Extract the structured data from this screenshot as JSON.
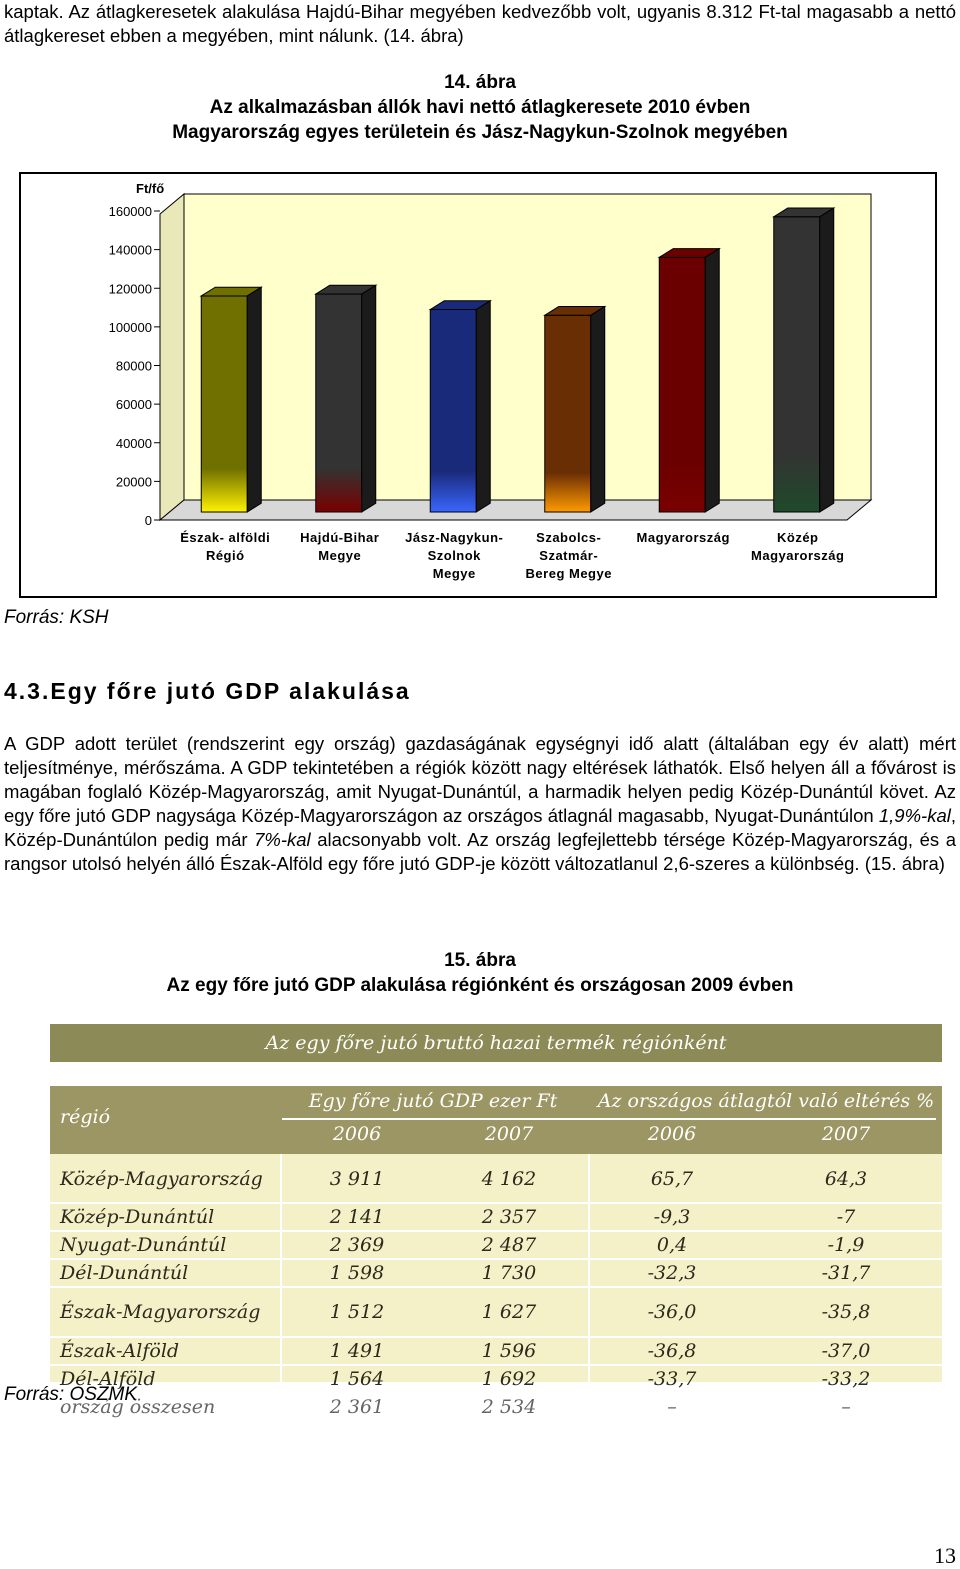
{
  "intro_paragraph": "kaptak. Az átlagkeresetek alakulása Hajdú-Bihar megyében kedvezőbb volt, ugyanis 8.312 Ft-tal magasabb a nettó átlagkereset ebben a megyében, mint nálunk. (14. ábra)",
  "figure14": {
    "number": "14. ábra",
    "title_line1": "Az alkalmazásban állók havi nettó átlagkeresete 2010 évben",
    "title_line2": "Magyarország egyes területein és Jász-Nagykun-Szolnok megyében",
    "source": "Forrás: KSH"
  },
  "chart_data": {
    "type": "bar",
    "ylabel": "Ft/fő",
    "ylim": [
      0,
      160000
    ],
    "yticks": [
      0,
      20000,
      40000,
      60000,
      80000,
      100000,
      120000,
      140000,
      160000
    ],
    "categories": [
      [
        "Észak- alföldi",
        "Régió"
      ],
      [
        "Hajdú-Bihar",
        "Megye"
      ],
      [
        "Jász-Nagykun-",
        "Szolnok",
        "Megye"
      ],
      [
        "Szabolcs-",
        "Szatmár-",
        "Bereg Megye"
      ],
      [
        "Magyarország"
      ],
      [
        "Közép",
        "Magyarország"
      ]
    ],
    "values": [
      116000,
      117000,
      109000,
      106000,
      136000,
      157000
    ],
    "bar_colors": [
      [
        "#707000",
        "#fff200"
      ],
      [
        "#333333",
        "#7a0000"
      ],
      [
        "#1a2a7a",
        "#3a66ff"
      ],
      [
        "#6a2e05",
        "#ff9a00"
      ],
      [
        "#6b0000",
        "#7a0000"
      ],
      [
        "#333333",
        "#1f4a2a"
      ]
    ],
    "wall_color": "#ffffcc",
    "grid": false
  },
  "section_heading": "4.3.Egy főre jutó GDP alakulása",
  "gdp_paragraph": {
    "p1": "A GDP adott terület (rendszerint egy ország) gazdaságának egységnyi idő alatt (általában egy év alatt) mért teljesítménye, mérőszáma. A GDP tekintetében a régiók között nagy eltérések láthatók. Első helyen áll a fővárost is magában foglaló Közép-Magyarország, amit Nyugat-Dunántúl, a harmadik helyen pedig Közép-Dunántúl követ. Az egy főre jutó GDP nagysága Közép-Magyarországon az országos átlagnál magasabb, Nyugat-Dunántúlon ",
    "em1": "1,9%-kal",
    "p2": ", Közép-Dunántúlon pedig már ",
    "em2": "7%-kal",
    "p3": " alacsonyabb volt. Az ország legfejlettebb térsége Közép-Magyarország, és a rangsor utolsó helyén álló Észak-Alföld egy főre jutó GDP-je között változatlanul 2,6-szeres a különbség. (15. ábra)"
  },
  "figure15": {
    "number": "15. ábra",
    "title": "Az egy főre jutó GDP alakulása régiónként és országosan 2009 évben",
    "source": "Forrás: OSZMK"
  },
  "gdp_table": {
    "title": "Az egy főre jutó bruttó hazai termék régiónként",
    "region_header": "régió",
    "group1": "Egy főre jutó GDP ezer Ft",
    "group2": "Az országos átlagtól való eltérés %",
    "years": [
      "2006",
      "2007",
      "2006",
      "2007"
    ],
    "rows": [
      {
        "label": "Közép-Magyarország",
        "values": [
          "3 911",
          "4 162",
          "65,7",
          "64,3"
        ]
      },
      {
        "label": "Közép-Dunántúl",
        "values": [
          "2 141",
          "2 357",
          "-9,3",
          "-7"
        ]
      },
      {
        "label": "Nyugat-Dunántúl",
        "values": [
          "2 369",
          "2 487",
          "0,4",
          "-1,9"
        ]
      },
      {
        "label": "Dél-Dunántúl",
        "values": [
          "1 598",
          "1 730",
          "-32,3",
          "-31,7"
        ]
      },
      {
        "label": "Észak-Magyarország",
        "values": [
          "1 512",
          "1 627",
          "-36,0",
          "-35,8"
        ]
      },
      {
        "label": "Észak-Alföld",
        "values": [
          "1 491",
          "1 596",
          "-36,8",
          "-37,0"
        ]
      },
      {
        "label": "Dél-Alföld",
        "values": [
          "1 564",
          "1 692",
          "-33,7",
          "-33,2"
        ]
      },
      {
        "label": "ország összesen",
        "values": [
          "2 361",
          "2 534",
          "–",
          "–"
        ]
      }
    ]
  },
  "page_number": "13"
}
